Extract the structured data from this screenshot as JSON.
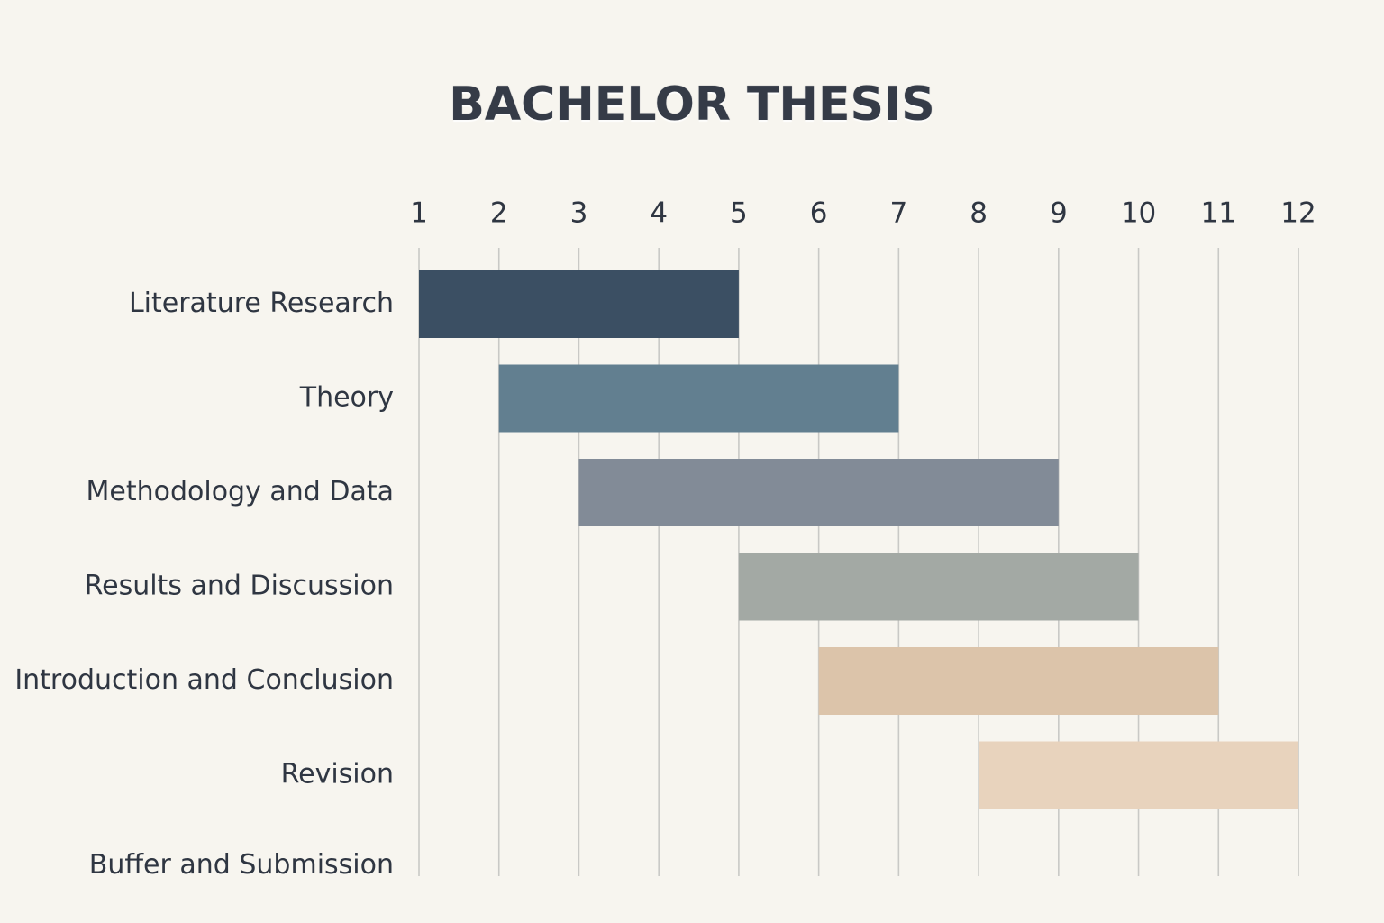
{
  "chart_data": {
    "type": "gantt",
    "title": "BACHELOR THESIS",
    "xlabel": "",
    "ylabel": "",
    "x_ticks": [
      1,
      2,
      3,
      4,
      5,
      6,
      7,
      8,
      9,
      10,
      11,
      12
    ],
    "xlim": [
      1,
      12
    ],
    "grid": "vertical",
    "tasks": [
      {
        "label": "Literature Research",
        "start": 1,
        "end": 5,
        "color": "#3b4f63"
      },
      {
        "label": "Theory",
        "start": 2,
        "end": 7,
        "color": "#627f90"
      },
      {
        "label": "Methodology and Data",
        "start": 3,
        "end": 9,
        "color": "#828b97"
      },
      {
        "label": "Results and Discussion",
        "start": 5,
        "end": 10,
        "color": "#a3a9a4"
      },
      {
        "label": "Introduction and Conclusion",
        "start": 6,
        "end": 11,
        "color": "#dcc4aa"
      },
      {
        "label": "Revision",
        "start": 8,
        "end": 12,
        "color": "#e8d3bd"
      },
      {
        "label": "Buffer and Submission",
        "start": null,
        "end": null,
        "color": ""
      }
    ],
    "colors": {
      "background": "#f7f5ef",
      "grid": "#c9c9c6",
      "text": "#2f3642"
    }
  }
}
